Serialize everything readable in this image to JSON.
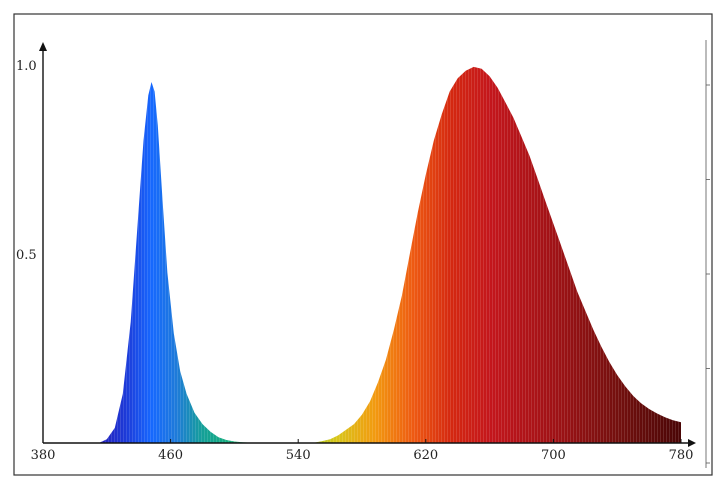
{
  "chart_data": {
    "type": "area",
    "title": "",
    "xlabel": "",
    "ylabel": "",
    "xlim": [
      380,
      780
    ],
    "ylim": [
      0,
      1.0
    ],
    "x_ticks": [
      "380",
      "460",
      "540",
      "620",
      "700",
      "780"
    ],
    "y_ticks": [
      "0.5",
      "1.0"
    ],
    "grid": false,
    "legend": "none",
    "fill": "wavelength-colored spectrum",
    "series": [
      {
        "x": [
          415,
          420,
          425,
          430,
          435,
          440,
          443,
          446,
          448,
          450,
          452,
          455,
          458,
          462,
          466,
          470,
          475,
          480,
          485,
          490,
          495,
          500,
          505,
          510,
          515
        ],
        "y": [
          0.0,
          0.01,
          0.04,
          0.13,
          0.32,
          0.62,
          0.8,
          0.92,
          0.955,
          0.93,
          0.84,
          0.64,
          0.45,
          0.29,
          0.19,
          0.13,
          0.08,
          0.05,
          0.03,
          0.015,
          0.008,
          0.004,
          0.002,
          0.001,
          0.0
        ]
      },
      {
        "x": [
          549,
          555,
          560,
          565,
          570,
          575,
          580,
          585,
          590,
          595,
          600,
          605,
          610,
          615,
          620,
          625,
          630,
          635,
          640,
          645,
          650,
          655,
          660,
          665,
          670,
          675,
          680,
          685,
          690,
          695,
          700,
          705,
          710,
          715,
          720,
          725,
          730,
          735,
          740,
          745,
          750,
          755,
          760,
          765,
          770,
          775,
          780
        ],
        "y": [
          0.0,
          0.005,
          0.01,
          0.02,
          0.035,
          0.05,
          0.075,
          0.11,
          0.16,
          0.22,
          0.3,
          0.39,
          0.5,
          0.61,
          0.71,
          0.8,
          0.87,
          0.93,
          0.965,
          0.985,
          0.995,
          0.99,
          0.97,
          0.94,
          0.9,
          0.86,
          0.81,
          0.76,
          0.7,
          0.64,
          0.58,
          0.52,
          0.46,
          0.4,
          0.35,
          0.3,
          0.255,
          0.215,
          0.18,
          0.15,
          0.125,
          0.105,
          0.09,
          0.078,
          0.068,
          0.06,
          0.055
        ]
      }
    ]
  }
}
